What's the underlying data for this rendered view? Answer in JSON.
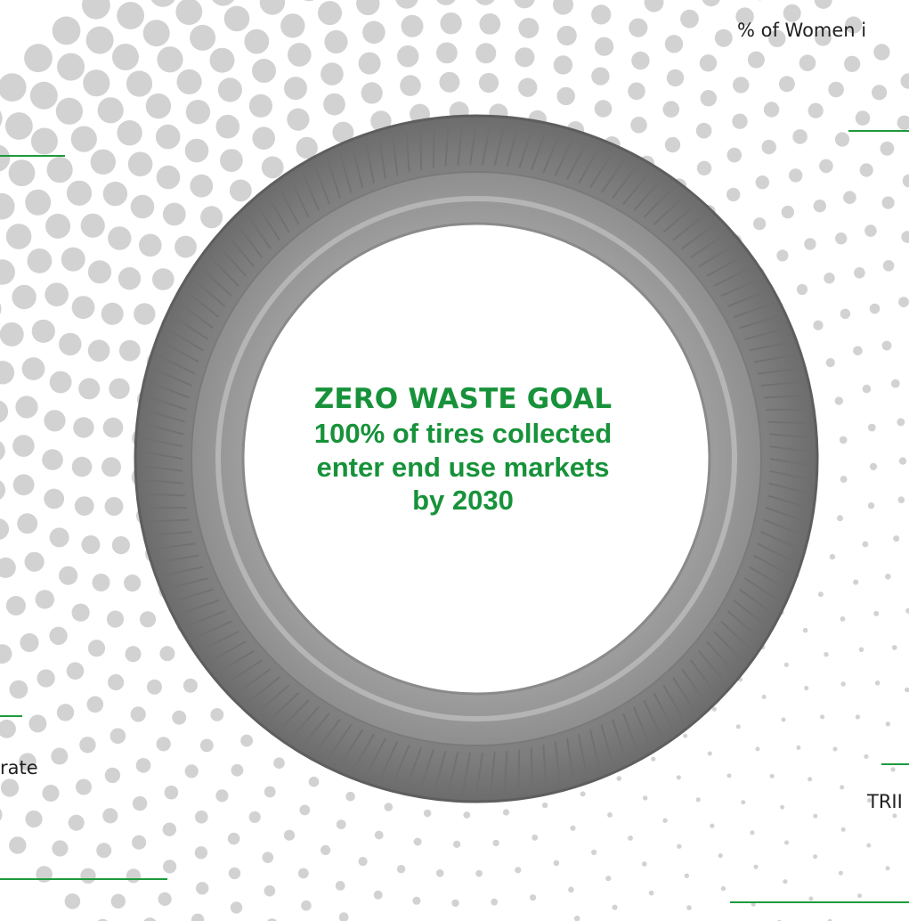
{
  "goal": {
    "title": "ZERO WASTE GOAL",
    "lines": [
      "100% of tires collected",
      "enter end use markets",
      "by 2030"
    ]
  },
  "labels": {
    "top_right": "% of Women i",
    "bottom_left": "rate",
    "bottom_right": "TRII"
  },
  "colors": {
    "accent_green": "#17923a",
    "rule_green": "#1e9a3c",
    "dot_grey": "#d2d2d2",
    "tire_grey": "#8a8a8a",
    "text_dark": "#1f1f1f"
  },
  "icons": {
    "tire": "tire-icon",
    "dots": "halftone-dots-pattern"
  }
}
